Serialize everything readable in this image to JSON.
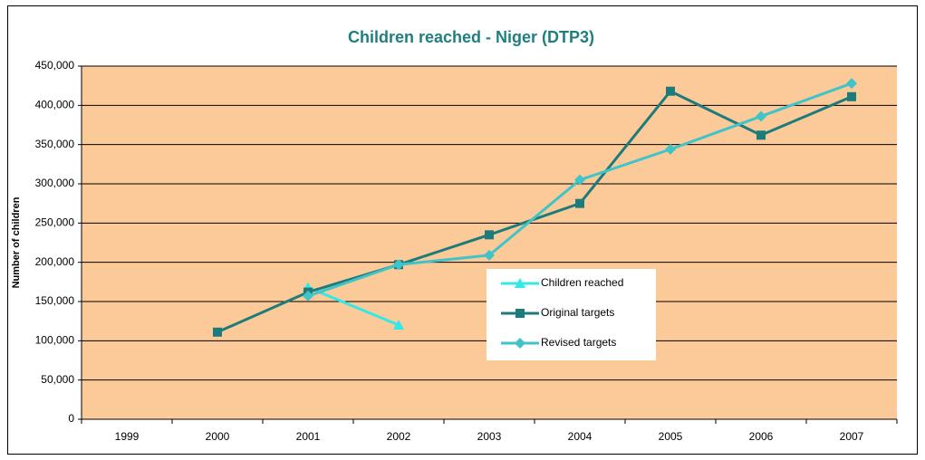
{
  "chart_data": {
    "type": "line",
    "title": "Children reached - Niger (DTP3)",
    "y_label": "Number of children",
    "categories": [
      "1999",
      "2000",
      "2001",
      "2002",
      "2003",
      "2004",
      "2005",
      "2006",
      "2007"
    ],
    "series": [
      {
        "name": "Children reached",
        "color": "#33e8e8",
        "marker": "triangle",
        "values": [
          null,
          null,
          168000,
          120000,
          null,
          null,
          null,
          null,
          null
        ]
      },
      {
        "name": "Original targets",
        "color": "#1e7b7b",
        "marker": "square",
        "values": [
          null,
          111000,
          162000,
          197000,
          235000,
          275000,
          418000,
          362000,
          411000
        ]
      },
      {
        "name": "Revised targets",
        "color": "#40c4c8",
        "marker": "diamond",
        "values": [
          null,
          null,
          157000,
          197000,
          209000,
          305000,
          344000,
          386000,
          428000
        ]
      }
    ],
    "ylim": [
      0,
      450000
    ],
    "yticks": [
      0,
      {
        "value": 50000,
        "label": "50,000"
      },
      {
        "value": 100000,
        "label": "100,000"
      },
      {
        "value": 150000,
        "label": "150,000"
      },
      {
        "value": 200000,
        "label": "200,000"
      },
      {
        "value": 250000,
        "label": "250,000"
      },
      {
        "value": 300000,
        "label": "300,000"
      },
      {
        "value": 350000,
        "label": "350,000"
      },
      {
        "value": 400000,
        "label": "400,000"
      },
      {
        "value": 450000,
        "label": "450,000"
      }
    ],
    "grid": true,
    "plot_background": "#fbca98"
  }
}
